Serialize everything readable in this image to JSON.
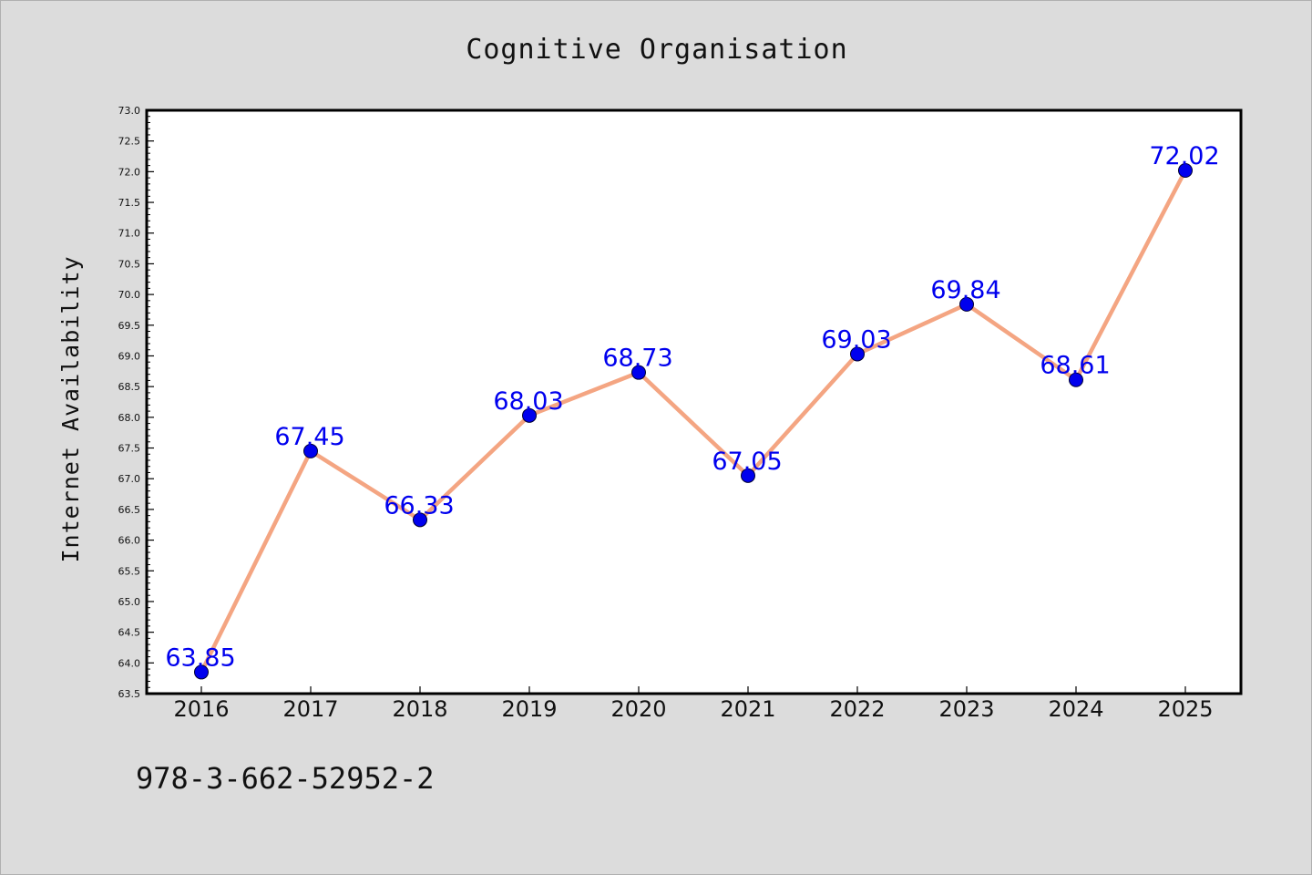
{
  "chart_data": {
    "type": "line",
    "title": "Cognitive Organisation",
    "xlabel": "",
    "ylabel": "Internet Availability",
    "categories": [
      "2016",
      "2017",
      "2018",
      "2019",
      "2020",
      "2021",
      "2022",
      "2023",
      "2024",
      "2025"
    ],
    "series": [
      {
        "values": [
          63.85,
          67.45,
          66.33,
          68.03,
          68.73,
          67.05,
          69.03,
          69.84,
          68.61,
          72.02
        ],
        "data_labels": [
          "63.85",
          "67.45",
          "66.33",
          "68.03",
          "68.73",
          "67.05",
          "69.03",
          "69.84",
          "68.61",
          "72.02"
        ]
      }
    ],
    "ylim": [
      63.5,
      73.0
    ],
    "yticks": [
      "63.5",
      "64.0",
      "64.5",
      "65.0",
      "65.5",
      "66.0",
      "66.5",
      "67.0",
      "67.5",
      "68.0",
      "68.5",
      "69.0",
      "69.5",
      "70.0",
      "70.5",
      "71.0",
      "71.5",
      "72.0",
      "72.5",
      "73.0"
    ],
    "grid": false,
    "legend": "none",
    "colors": {
      "line": "#f4a582",
      "marker": "#0000ee",
      "label": "#0000ee",
      "background": "#dcdcdc",
      "plot_background": "#ffffff"
    }
  },
  "footnote": "978-3-662-52952-2"
}
